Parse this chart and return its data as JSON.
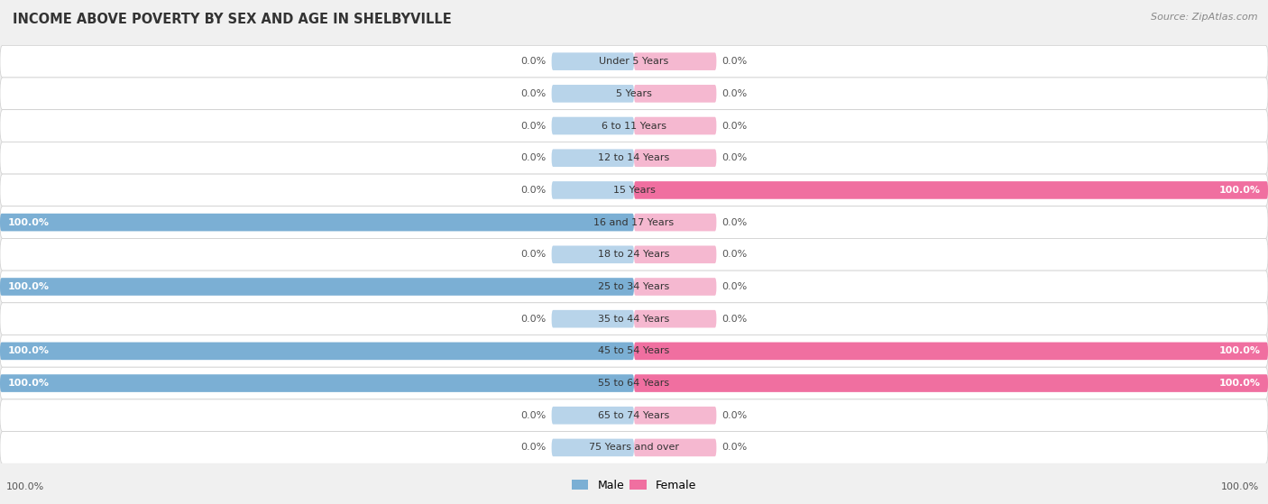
{
  "title": "INCOME ABOVE POVERTY BY SEX AND AGE IN SHELBYVILLE",
  "source": "Source: ZipAtlas.com",
  "categories": [
    "Under 5 Years",
    "5 Years",
    "6 to 11 Years",
    "12 to 14 Years",
    "15 Years",
    "16 and 17 Years",
    "18 to 24 Years",
    "25 to 34 Years",
    "35 to 44 Years",
    "45 to 54 Years",
    "55 to 64 Years",
    "65 to 74 Years",
    "75 Years and over"
  ],
  "male_values": [
    0.0,
    0.0,
    0.0,
    0.0,
    0.0,
    100.0,
    0.0,
    100.0,
    0.0,
    100.0,
    100.0,
    0.0,
    0.0
  ],
  "female_values": [
    0.0,
    0.0,
    0.0,
    0.0,
    100.0,
    0.0,
    0.0,
    0.0,
    0.0,
    100.0,
    100.0,
    0.0,
    0.0
  ],
  "male_color": "#7BAFD4",
  "male_color_light": "#B8D4EA",
  "female_color": "#F06FA0",
  "female_color_light": "#F5B8D0",
  "background_color": "#f0f0f0",
  "row_bg_color": "#ffffff",
  "xlim": 100,
  "bar_height": 0.55,
  "min_bar_width": 13,
  "title_fontsize": 10.5,
  "label_fontsize": 8.0,
  "source_fontsize": 8.0
}
